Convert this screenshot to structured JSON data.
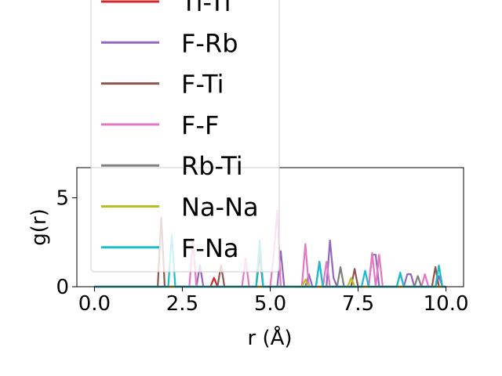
{
  "chart_data": {
    "type": "line",
    "xlabel": "r (Å)",
    "ylabel": "g(r)",
    "xlim": [
      -0.5,
      10.5
    ],
    "ylim": [
      0,
      6.7
    ],
    "xticks": [
      0.0,
      2.5,
      5.0,
      7.5,
      10.0
    ],
    "xtick_labels": [
      "0.0",
      "2.5",
      "5.0",
      "7.5",
      "10.0"
    ],
    "yticks": [
      0,
      5
    ],
    "ytick_labels": [
      "0",
      "5"
    ],
    "grid": false,
    "legend_position": "upper center, overflowing above plot",
    "series": [
      {
        "name": "Ti-Ti",
        "color": "#d62728",
        "points": [
          [
            0,
            0
          ],
          [
            3.3,
            0
          ],
          [
            3.4,
            0.5
          ],
          [
            3.5,
            0
          ],
          [
            10,
            0
          ]
        ]
      },
      {
        "name": "F-Rb",
        "color": "#9467bd",
        "points": [
          [
            0,
            0
          ],
          [
            2.9,
            0
          ],
          [
            3.0,
            1.2
          ],
          [
            3.1,
            0
          ],
          [
            5.2,
            0
          ],
          [
            5.3,
            2.0
          ],
          [
            5.4,
            0
          ],
          [
            6.0,
            0
          ],
          [
            6.1,
            0.7
          ],
          [
            6.2,
            0
          ],
          [
            6.6,
            0
          ],
          [
            6.7,
            2.6
          ],
          [
            6.8,
            0.5
          ],
          [
            6.9,
            0
          ],
          [
            7.8,
            0
          ],
          [
            7.9,
            1.8
          ],
          [
            8.0,
            1.8
          ],
          [
            8.1,
            0
          ],
          [
            8.8,
            0
          ],
          [
            8.9,
            0.7
          ],
          [
            9.0,
            0.7
          ],
          [
            9.1,
            0
          ],
          [
            9.7,
            0
          ],
          [
            9.8,
            0.6
          ],
          [
            9.9,
            0
          ],
          [
            10,
            0
          ]
        ]
      },
      {
        "name": "F-Ti",
        "color": "#8c564b",
        "points": [
          [
            0,
            0
          ],
          [
            1.8,
            0
          ],
          [
            1.9,
            3.9
          ],
          [
            2.0,
            0
          ],
          [
            3.5,
            0
          ],
          [
            3.6,
            1.2
          ],
          [
            3.7,
            0
          ],
          [
            4.6,
            0
          ],
          [
            4.7,
            1.8
          ],
          [
            4.8,
            0
          ],
          [
            6.3,
            0
          ],
          [
            6.4,
            1.4
          ],
          [
            6.5,
            0
          ],
          [
            7.3,
            0
          ],
          [
            7.4,
            1.0
          ],
          [
            7.5,
            0
          ],
          [
            9.6,
            0
          ],
          [
            9.7,
            1.1
          ],
          [
            9.8,
            0
          ],
          [
            10,
            0
          ]
        ]
      },
      {
        "name": "F-F",
        "color": "#e377c2",
        "points": [
          [
            0,
            0
          ],
          [
            2.7,
            0
          ],
          [
            2.8,
            2.6
          ],
          [
            2.9,
            0
          ],
          [
            4.2,
            0
          ],
          [
            4.3,
            1.6
          ],
          [
            4.4,
            0
          ],
          [
            5.0,
            0
          ],
          [
            5.1,
            1.8
          ],
          [
            5.2,
            4.3
          ],
          [
            5.3,
            0
          ],
          [
            5.9,
            0
          ],
          [
            6.0,
            2.4
          ],
          [
            6.1,
            0
          ],
          [
            6.5,
            0
          ],
          [
            6.6,
            1.4
          ],
          [
            6.7,
            0
          ],
          [
            7.8,
            0
          ],
          [
            7.9,
            1.9
          ],
          [
            8.0,
            0
          ],
          [
            8.1,
            1.8
          ],
          [
            8.2,
            0
          ],
          [
            8.6,
            0
          ],
          [
            8.7,
            0.7
          ],
          [
            8.8,
            0
          ],
          [
            9.3,
            0
          ],
          [
            9.4,
            0.7
          ],
          [
            9.5,
            0
          ],
          [
            10,
            0
          ]
        ]
      },
      {
        "name": "Rb-Ti",
        "color": "#7f7f7f",
        "points": [
          [
            0,
            0
          ],
          [
            6.9,
            0
          ],
          [
            7.0,
            1.1
          ],
          [
            7.1,
            0
          ],
          [
            9.1,
            0
          ],
          [
            9.2,
            0.6
          ],
          [
            9.3,
            0
          ],
          [
            10,
            0
          ]
        ]
      },
      {
        "name": "Na-Na",
        "color": "#bcbd22",
        "points": [
          [
            0,
            0
          ],
          [
            5.9,
            0
          ],
          [
            6.0,
            0.4
          ],
          [
            6.1,
            0
          ],
          [
            7.2,
            0
          ],
          [
            7.3,
            0.5
          ],
          [
            7.4,
            0
          ],
          [
            10,
            0
          ]
        ]
      },
      {
        "name": "F-Na",
        "color": "#17becf",
        "points": [
          [
            0,
            0
          ],
          [
            2.1,
            0
          ],
          [
            2.2,
            2.9
          ],
          [
            2.3,
            0
          ],
          [
            4.6,
            0
          ],
          [
            4.7,
            2.6
          ],
          [
            4.8,
            0
          ],
          [
            6.3,
            0
          ],
          [
            6.4,
            1.4
          ],
          [
            6.5,
            0
          ],
          [
            7.6,
            0
          ],
          [
            7.7,
            0.9
          ],
          [
            7.8,
            0
          ],
          [
            8.6,
            0
          ],
          [
            8.7,
            0.8
          ],
          [
            8.8,
            0
          ],
          [
            9.7,
            0
          ],
          [
            9.8,
            1.2
          ],
          [
            9.9,
            0
          ],
          [
            10,
            0
          ]
        ]
      }
    ]
  }
}
